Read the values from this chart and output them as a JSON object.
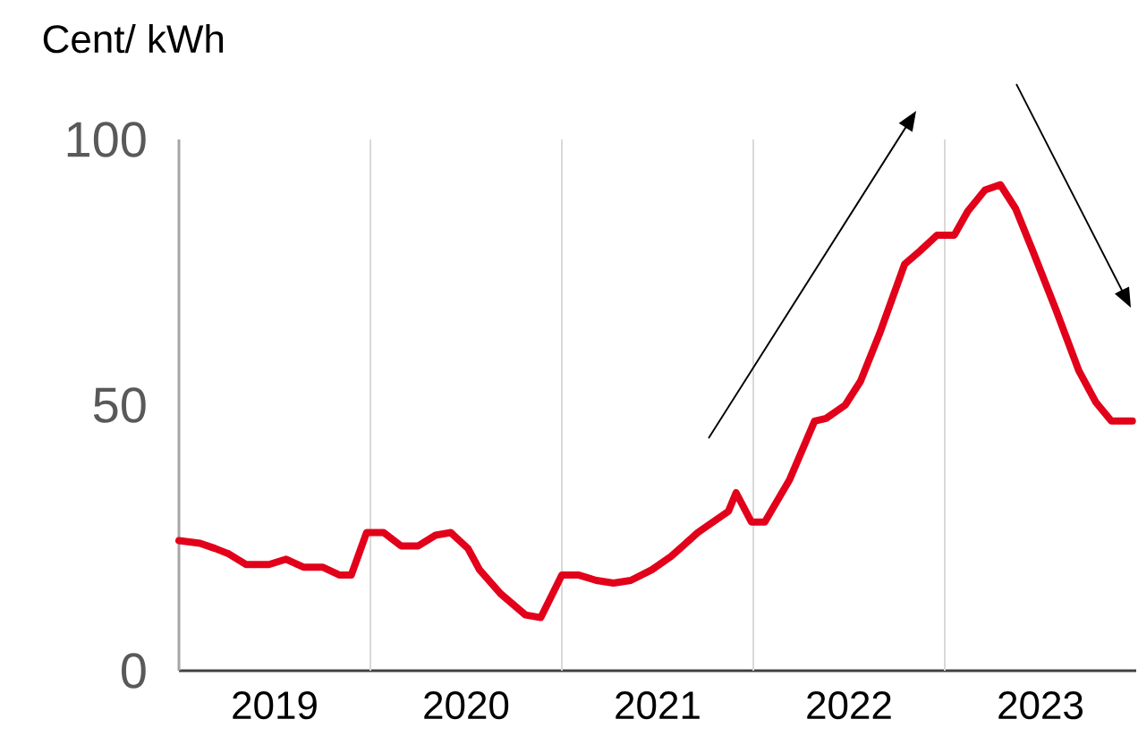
{
  "chart_data": {
    "type": "line",
    "ylabel": "Cent/ kWh",
    "x": [
      2019.0,
      2019.11,
      2019.19,
      2019.26,
      2019.35,
      2019.47,
      2019.56,
      2019.65,
      2019.75,
      2019.84,
      2019.9,
      2019.98,
      2020.07,
      2020.16,
      2020.25,
      2020.34,
      2020.42,
      2020.51,
      2020.57,
      2020.68,
      2020.81,
      2020.89,
      2021.0,
      2021.09,
      2021.18,
      2021.27,
      2021.36,
      2021.47,
      2021.57,
      2021.71,
      2021.87,
      2021.91,
      2021.99,
      2022.06,
      2022.19,
      2022.32,
      2022.38,
      2022.48,
      2022.56,
      2022.66,
      2022.79,
      2022.87,
      2022.96,
      2023.05,
      2023.12,
      2023.21,
      2023.29,
      2023.37,
      2023.46,
      2023.58,
      2023.7,
      2023.79,
      2023.87,
      2023.98
    ],
    "series": [
      {
        "color": "#e2001a",
        "values": [
          24.5,
          24,
          23,
          22,
          20,
          20,
          21,
          19.5,
          19.5,
          18,
          18,
          26,
          26,
          23.5,
          23.5,
          25.5,
          26,
          23,
          19,
          14.5,
          10.5,
          10,
          18,
          18,
          17,
          16.5,
          17,
          19,
          21.5,
          26,
          30,
          33.5,
          28,
          28,
          36,
          47,
          47.5,
          50,
          54.5,
          63.5,
          76.5,
          79,
          82,
          82,
          86.5,
          90.5,
          91.5,
          87,
          79,
          68,
          56.5,
          50.5,
          47,
          47
        ]
      }
    ],
    "xlim": [
      2019,
      2024
    ],
    "xticks": [
      {
        "value": 2019.5,
        "label": "2019"
      },
      {
        "value": 2020.5,
        "label": "2020"
      },
      {
        "value": 2021.5,
        "label": "2021"
      },
      {
        "value": 2022.5,
        "label": "2022"
      },
      {
        "value": 2023.5,
        "label": "2023"
      }
    ],
    "ylim": [
      0,
      100
    ],
    "yticks": [
      0,
      50,
      100
    ],
    "ref_lines": [
      {
        "axis": "x",
        "value": 2020,
        "color": "#d9d9d9"
      },
      {
        "axis": "x",
        "value": 2021,
        "color": "#d9d9d9"
      },
      {
        "axis": "x",
        "value": 2022,
        "color": "#d9d9d9"
      },
      {
        "axis": "x",
        "value": 2023,
        "color": "#d9d9d9"
      }
    ],
    "grid": false
  }
}
